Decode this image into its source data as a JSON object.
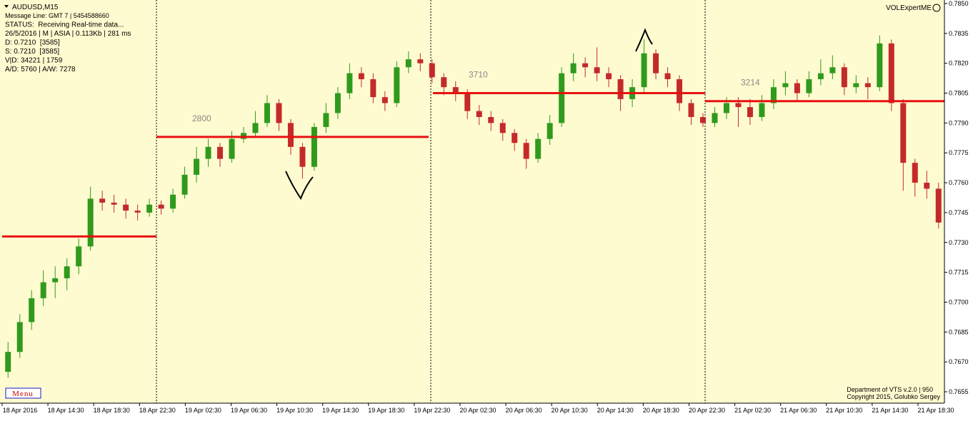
{
  "header": {
    "symbol": "AUDUSD,M15",
    "lines": [
      "Message Line: GMT 7 | 5454588660",
      "STATUS:  Receiving Real-time data...",
      "26/5/2016 | M | ASIA | 0.113Kb | 281 ms",
      "D: 0.7210  [3585]",
      "S: 0.7210  [3585]",
      "V|D: 34221 | 1759",
      "A/D: 5760 | A/W: 7278"
    ],
    "indicator": "VOLExpertME",
    "menu": "Menu",
    "footer": [
      "Department of VTS  v.2.0 | 950",
      "Copyright 2015, Golubko Sergey"
    ]
  },
  "chart_data": {
    "type": "candlestick",
    "categories": [
      "18 Apr 2016",
      "18 Apr 14:30",
      "18 Apr 18:30",
      "18 Apr 22:30",
      "19 Apr 02:30",
      "19 Apr 06:30",
      "19 Apr 10:30",
      "19 Apr 14:30",
      "19 Apr 18:30",
      "19 Apr 22:30",
      "20 Apr 02:30",
      "20 Apr 06:30",
      "20 Apr 10:30",
      "20 Apr 14:30",
      "20 Apr 18:30",
      "20 Apr 22:30",
      "21 Apr 02:30",
      "21 Apr 06:30",
      "21 Apr 10:30",
      "21 Apr 14:30",
      "21 Apr 18:30"
    ],
    "candles": [
      [
        0.7665,
        0.768,
        0.7662,
        0.7675
      ],
      [
        0.7675,
        0.7694,
        0.7672,
        0.769
      ],
      [
        0.769,
        0.7706,
        0.7686,
        0.7702
      ],
      [
        0.7702,
        0.7716,
        0.7698,
        0.771
      ],
      [
        0.771,
        0.7718,
        0.7702,
        0.7712
      ],
      [
        0.7712,
        0.7722,
        0.7706,
        0.7718
      ],
      [
        0.7718,
        0.7732,
        0.7714,
        0.7728
      ],
      [
        0.7728,
        0.7758,
        0.7726,
        0.7752
      ],
      [
        0.7752,
        0.7756,
        0.7746,
        0.775
      ],
      [
        0.775,
        0.7754,
        0.7745,
        0.7749
      ],
      [
        0.7749,
        0.7752,
        0.7742,
        0.7746
      ],
      [
        0.7746,
        0.7749,
        0.7741,
        0.7745
      ],
      [
        0.7745,
        0.7752,
        0.7743,
        0.7749
      ],
      [
        0.7749,
        0.7751,
        0.7744,
        0.7747
      ],
      [
        0.7747,
        0.7757,
        0.7745,
        0.7754
      ],
      [
        0.7754,
        0.7768,
        0.7752,
        0.7764
      ],
      [
        0.7764,
        0.7778,
        0.776,
        0.7772
      ],
      [
        0.7772,
        0.7782,
        0.7768,
        0.7778
      ],
      [
        0.7778,
        0.778,
        0.7768,
        0.7772
      ],
      [
        0.7772,
        0.7786,
        0.777,
        0.7782
      ],
      [
        0.7782,
        0.7788,
        0.778,
        0.7785
      ],
      [
        0.7785,
        0.7796,
        0.7783,
        0.779
      ],
      [
        0.779,
        0.7804,
        0.7788,
        0.78
      ],
      [
        0.78,
        0.7802,
        0.7786,
        0.779
      ],
      [
        0.779,
        0.7792,
        0.7774,
        0.7778
      ],
      [
        0.7778,
        0.778,
        0.7762,
        0.7768
      ],
      [
        0.7768,
        0.779,
        0.7766,
        0.7788
      ],
      [
        0.7788,
        0.78,
        0.7785,
        0.7795
      ],
      [
        0.7795,
        0.7808,
        0.7792,
        0.7805
      ],
      [
        0.7805,
        0.782,
        0.7802,
        0.7815
      ],
      [
        0.7815,
        0.7818,
        0.7808,
        0.7812
      ],
      [
        0.7812,
        0.7815,
        0.78,
        0.7803
      ],
      [
        0.7803,
        0.7806,
        0.7796,
        0.78
      ],
      [
        0.78,
        0.7821,
        0.7798,
        0.7818
      ],
      [
        0.7818,
        0.7826,
        0.7815,
        0.7822
      ],
      [
        0.7822,
        0.7825,
        0.7816,
        0.782
      ],
      [
        0.782,
        0.7822,
        0.781,
        0.7813
      ],
      [
        0.7813,
        0.7815,
        0.7804,
        0.7808
      ],
      [
        0.7808,
        0.7811,
        0.7801,
        0.7805
      ],
      [
        0.7805,
        0.7807,
        0.7792,
        0.7796
      ],
      [
        0.7796,
        0.7799,
        0.7789,
        0.7793
      ],
      [
        0.7793,
        0.7796,
        0.7786,
        0.779
      ],
      [
        0.779,
        0.7792,
        0.7781,
        0.7785
      ],
      [
        0.7785,
        0.7787,
        0.7776,
        0.778
      ],
      [
        0.778,
        0.7782,
        0.7767,
        0.7772
      ],
      [
        0.7772,
        0.7785,
        0.777,
        0.7782
      ],
      [
        0.7782,
        0.7794,
        0.7779,
        0.779
      ],
      [
        0.779,
        0.7818,
        0.7788,
        0.7815
      ],
      [
        0.7815,
        0.7825,
        0.7811,
        0.782
      ],
      [
        0.782,
        0.7823,
        0.7813,
        0.7818
      ],
      [
        0.7818,
        0.7828,
        0.7811,
        0.7815
      ],
      [
        0.7815,
        0.7818,
        0.7808,
        0.7812
      ],
      [
        0.7812,
        0.7814,
        0.7796,
        0.7802
      ],
      [
        0.7802,
        0.7812,
        0.7798,
        0.7808
      ],
      [
        0.7808,
        0.7832,
        0.7805,
        0.7825
      ],
      [
        0.7825,
        0.7827,
        0.7812,
        0.7815
      ],
      [
        0.7815,
        0.7818,
        0.7808,
        0.7812
      ],
      [
        0.7812,
        0.7814,
        0.7796,
        0.78
      ],
      [
        0.78,
        0.7802,
        0.7789,
        0.7793
      ],
      [
        0.7793,
        0.7795,
        0.7788,
        0.779
      ],
      [
        0.779,
        0.7798,
        0.7788,
        0.7795
      ],
      [
        0.7795,
        0.7803,
        0.7792,
        0.78
      ],
      [
        0.78,
        0.7803,
        0.7788,
        0.7798
      ],
      [
        0.7798,
        0.7802,
        0.7789,
        0.7793
      ],
      [
        0.7793,
        0.7804,
        0.7791,
        0.78
      ],
      [
        0.78,
        0.7812,
        0.7797,
        0.7808
      ],
      [
        0.7808,
        0.7816,
        0.7804,
        0.781
      ],
      [
        0.781,
        0.7812,
        0.7801,
        0.7805
      ],
      [
        0.7805,
        0.7816,
        0.7803,
        0.7812
      ],
      [
        0.7812,
        0.7822,
        0.7809,
        0.7815
      ],
      [
        0.7815,
        0.7824,
        0.7812,
        0.7818
      ],
      [
        0.7818,
        0.782,
        0.7804,
        0.7808
      ],
      [
        0.7808,
        0.7814,
        0.7805,
        0.781
      ],
      [
        0.781,
        0.7813,
        0.7802,
        0.7808
      ],
      [
        0.7808,
        0.7834,
        0.7806,
        0.783
      ],
      [
        0.783,
        0.7832,
        0.7796,
        0.78
      ],
      [
        0.78,
        0.7802,
        0.7756,
        0.777
      ],
      [
        0.777,
        0.7772,
        0.7753,
        0.776
      ],
      [
        0.776,
        0.7766,
        0.7752,
        0.7757
      ],
      [
        0.7757,
        0.776,
        0.7737,
        0.774
      ]
    ],
    "levels": [
      0.7733,
      0.7783,
      0.7805,
      0.7801
    ],
    "level_volumes": [
      null,
      2800,
      3710,
      3214
    ],
    "ylim": [
      0.7655,
      0.785
    ],
    "yticks": [
      {
        "value": 0.7655,
        "label": "0.7655"
      },
      {
        "value": 0.767,
        "label": "0.7670"
      },
      {
        "value": 0.7685,
        "label": "0.7685"
      },
      {
        "value": 0.77,
        "label": "0.7700"
      },
      {
        "value": 0.7715,
        "label": "0.7715"
      },
      {
        "value": 0.773,
        "label": "0.7730"
      },
      {
        "value": 0.7745,
        "label": "0.7745"
      },
      {
        "value": 0.776,
        "label": "0.7760"
      },
      {
        "value": 0.7775,
        "label": "0.7775"
      },
      {
        "value": 0.779,
        "label": "0.7790"
      },
      {
        "value": 0.7805,
        "label": "0.7805"
      },
      {
        "value": 0.782,
        "label": "0.7820"
      },
      {
        "value": 0.7835,
        "label": "0.7835"
      },
      {
        "value": 0.785,
        "label": "0.7850"
      }
    ],
    "bull_color": "#2f9a1c",
    "bear_color": "#c42a2a",
    "level_color": "#e81010",
    "background": "#fffbd0"
  }
}
